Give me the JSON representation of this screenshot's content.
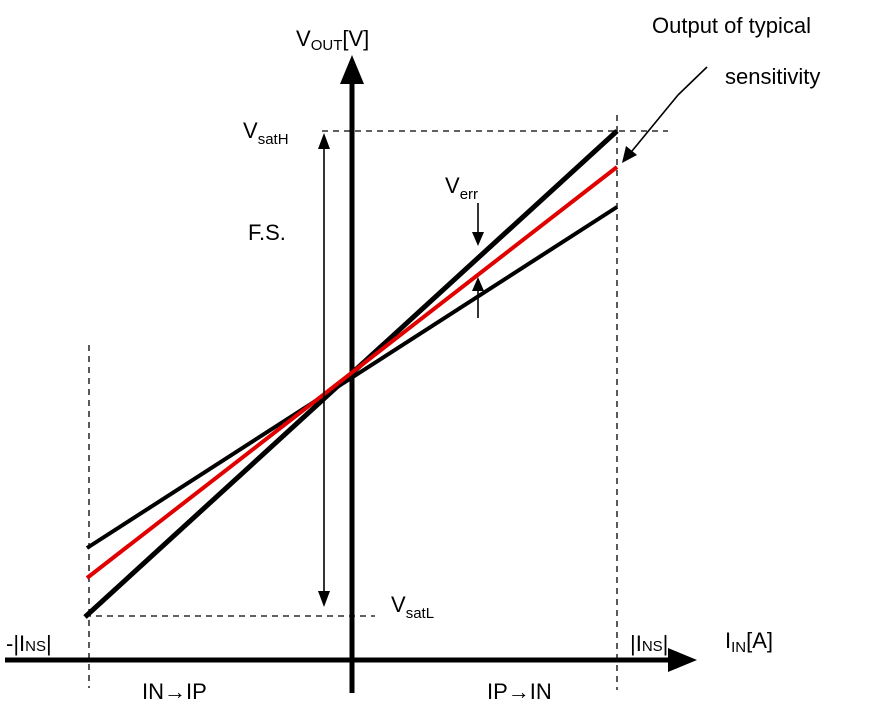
{
  "labels": {
    "y_axis_main": "V",
    "y_axis_sub": "OUT",
    "y_axis_unit": "[V]",
    "x_axis_main": "I",
    "x_axis_sub": "IN",
    "x_axis_unit": "[A]",
    "vsath_main": "V",
    "vsath_sub": "satH",
    "vsatl_main": "V",
    "vsatl_sub": "satL",
    "verr_main": "V",
    "verr_sub": "err",
    "fs": "F.S.",
    "typical_line1": "Output of typical",
    "typical_line2": "sensitivity",
    "neg_ins_prefix": "-|I",
    "neg_ins_sub": "NS",
    "neg_ins_suffix": "|",
    "pos_ins_prefix": "|I",
    "pos_ins_sub": "NS",
    "pos_ins_suffix": "|",
    "dir_left": "IN→IP",
    "dir_right": "IP→IN"
  },
  "colors": {
    "line": "#000000",
    "typical": "#e00000",
    "background": "#ffffff"
  }
}
